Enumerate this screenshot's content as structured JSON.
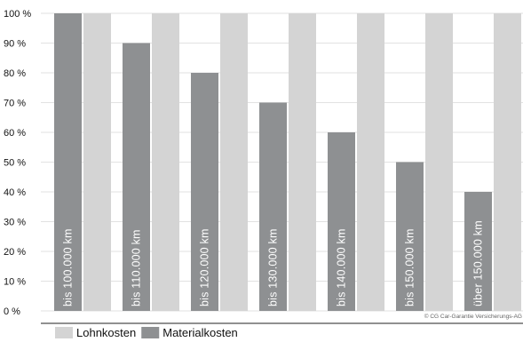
{
  "chart_data": {
    "type": "bar",
    "categories": [
      "bis 100.000 km",
      "bis 110.000 km",
      "bis 120.000 km",
      "bis 130.000 km",
      "bis 140.000 km",
      "bis 150.000 km",
      "über 150.000 km"
    ],
    "series": [
      {
        "name": "Materialkosten",
        "values": [
          100,
          90,
          80,
          70,
          60,
          50,
          40
        ],
        "color": "#8e9092"
      },
      {
        "name": "Lohnkosten",
        "values": [
          100,
          100,
          100,
          100,
          100,
          100,
          100
        ],
        "color": "#d4d4d4"
      }
    ],
    "yticks": [
      "0 %",
      "10 %",
      "20 %",
      "30 %",
      "40 %",
      "50 %",
      "60 %",
      "70 %",
      "80 %",
      "90 %",
      "100 %"
    ],
    "ylim": [
      0,
      100
    ],
    "grid": true,
    "legend_position": "bottom-left",
    "legend": [
      {
        "label": "Lohnkosten",
        "color": "#d4d4d4"
      },
      {
        "label": "Materialkosten",
        "color": "#8e9092"
      }
    ],
    "copyright": "© CG Car-Garantie Versicherungs-AG"
  }
}
